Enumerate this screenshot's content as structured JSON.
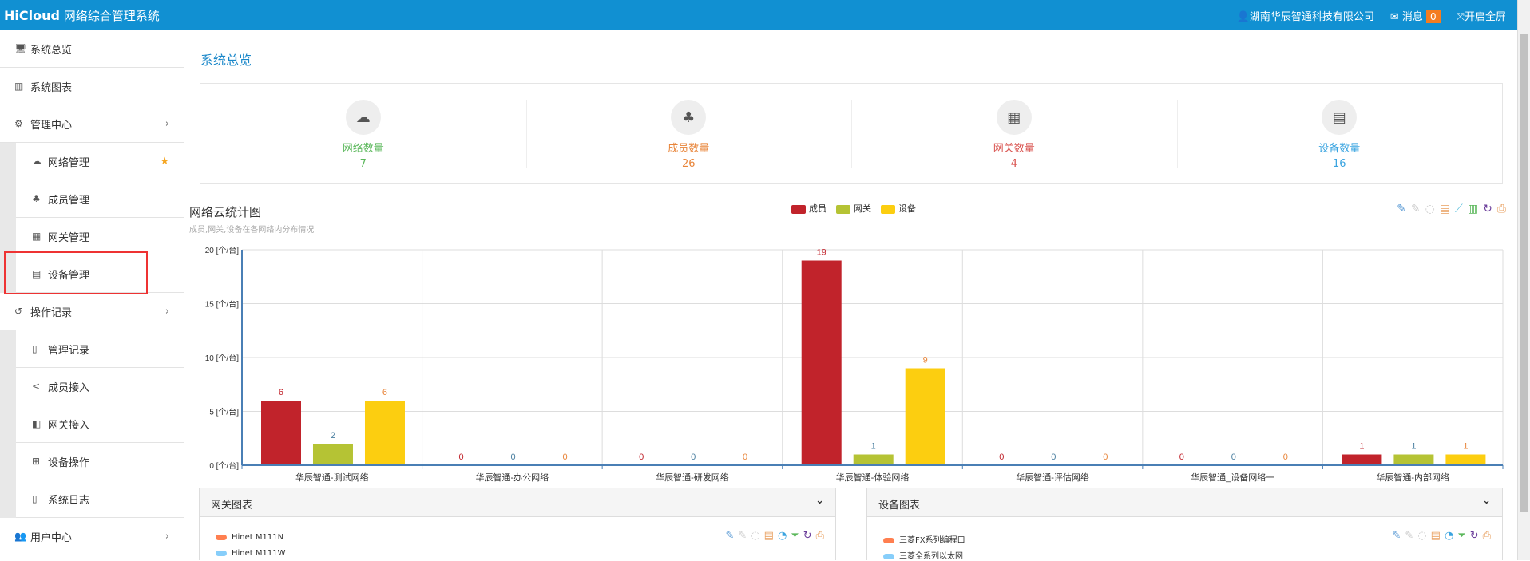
{
  "header": {
    "brand": "HiCloud",
    "system": "网络综合管理系统",
    "company": "湖南华辰智通科技有限公司",
    "messages_label": "消息",
    "messages_count": "0",
    "fullscreen_label": "开启全屏"
  },
  "sidebar": {
    "items": [
      {
        "label": "系统总览",
        "icon": "desktop-icon"
      },
      {
        "label": "系统图表",
        "icon": "bar-chart-icon"
      },
      {
        "label": "管理中心",
        "icon": "gears-icon",
        "children": [
          {
            "label": "网络管理",
            "icon": "cloud-icon",
            "starred": true
          },
          {
            "label": "成员管理",
            "icon": "sitemap-icon"
          },
          {
            "label": "网关管理",
            "icon": "grid-icon"
          },
          {
            "label": "设备管理",
            "icon": "calendar-icon",
            "highlighted": true
          }
        ]
      },
      {
        "label": "操作记录",
        "icon": "history-icon",
        "children": [
          {
            "label": "管理记录",
            "icon": "file-text-icon"
          },
          {
            "label": "成员接入",
            "icon": "share-icon"
          },
          {
            "label": "网关接入",
            "icon": "share-square-icon"
          },
          {
            "label": "设备操作",
            "icon": "plus-square-icon"
          },
          {
            "label": "系统日志",
            "icon": "file-icon"
          }
        ]
      },
      {
        "label": "用户中心",
        "icon": "users-icon"
      }
    ]
  },
  "main": {
    "title": "系统总览",
    "stats": [
      {
        "label": "网络数量",
        "value": "7",
        "color": "#5cb85c",
        "icon": "cloud-icon"
      },
      {
        "label": "成员数量",
        "value": "26",
        "color": "#e8853a",
        "icon": "sitemap-icon"
      },
      {
        "label": "网关数量",
        "value": "4",
        "color": "#d9534f",
        "icon": "grid-icon"
      },
      {
        "label": "设备数量",
        "value": "16",
        "color": "#3aa4e0",
        "icon": "calendar-icon"
      }
    ]
  },
  "chart_data": {
    "type": "bar",
    "title": "网络云统计图",
    "subtitle": "成员,网关,设备在各网络内分布情况",
    "categories": [
      "华辰智通-测试网络",
      "华辰智通-办公网络",
      "华辰智通-研发网络",
      "华辰智通-体验网络",
      "华辰智通-评估网络",
      "华辰智通_设备网络一",
      "华辰智通-内部网络"
    ],
    "series": [
      {
        "name": "成员",
        "color": "#c1232b",
        "label_color": "#c1232b",
        "values": [
          6,
          0,
          0,
          19,
          0,
          0,
          1
        ]
      },
      {
        "name": "网关",
        "color": "#b5c334",
        "label_color": "#4a7fa0",
        "values": [
          2,
          0,
          0,
          1,
          0,
          0,
          1
        ]
      },
      {
        "name": "设备",
        "color": "#fcce10",
        "label_color": "#e8853a",
        "values": [
          6,
          0,
          0,
          9,
          0,
          0,
          1
        ]
      }
    ],
    "ylim": [
      0,
      20
    ],
    "yticks": [
      "0 [个/台]",
      "5 [个/台]",
      "10 [个/台]",
      "15 [个/台]",
      "20 [个/台]"
    ],
    "grid": true,
    "legend": "top-center"
  },
  "panels": [
    {
      "title": "网关图表",
      "legend": [
        {
          "name": "Hinet M111N",
          "color": "#ff7f50"
        },
        {
          "name": "Hinet M111W",
          "color": "#87cefa"
        }
      ]
    },
    {
      "title": "设备图表",
      "legend": [
        {
          "name": "三菱FX系列编程口",
          "color": "#ff7f50"
        },
        {
          "name": "三菱全系列以太网",
          "color": "#87cefa"
        }
      ]
    }
  ]
}
